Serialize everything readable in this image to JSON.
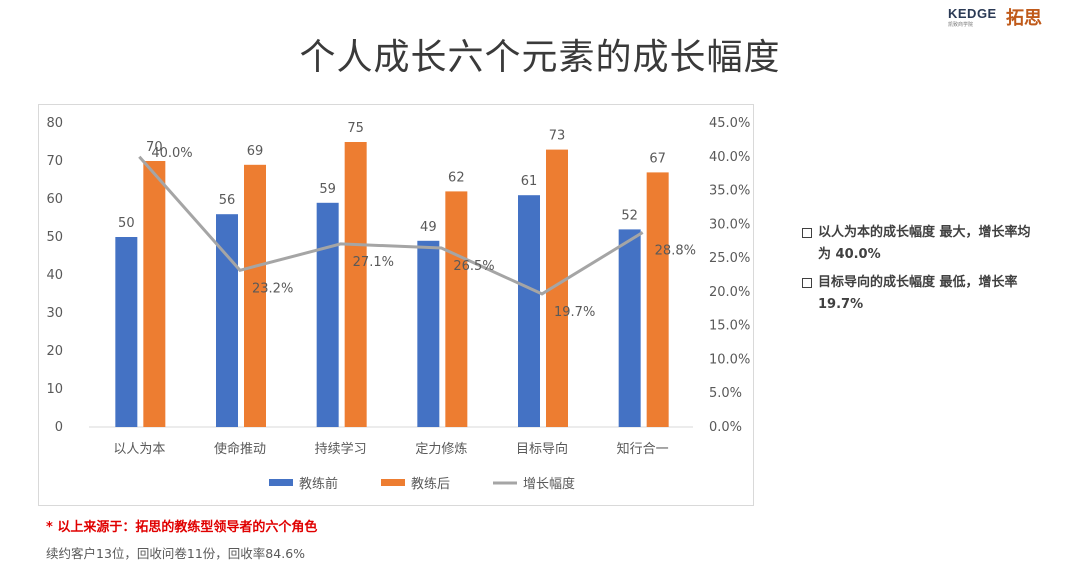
{
  "slide": {
    "title": "个人成长六个元素的成长幅度",
    "logo_left": "KEDGE",
    "logo_left_sub": "凯致商学院",
    "logo_right": "拓思"
  },
  "notes": [
    "以人为本的成长幅度 最大，增长率均为 40.0%",
    "目标导向的成长幅度 最低，增长率19.7%"
  ],
  "footer": {
    "source": "* 以上来源于：拓思的教练型领导者的六个角色",
    "stats": "续约客户13位，回收问卷11份，回收率84.6%"
  },
  "chart_data": {
    "type": "bar",
    "categories": [
      "以人为本",
      "使命推动",
      "持续学习",
      "定力修炼",
      "目标导向",
      "知行合一"
    ],
    "series": [
      {
        "name": "教练前",
        "type": "bar",
        "values": [
          50,
          56,
          59,
          49,
          61,
          52
        ],
        "color": "#4472c4"
      },
      {
        "name": "教练后",
        "type": "bar",
        "values": [
          70,
          69,
          75,
          62,
          73,
          67
        ],
        "color": "#ed7d31"
      },
      {
        "name": "增长幅度",
        "type": "line",
        "axis": "right",
        "values": [
          40.0,
          23.2,
          27.1,
          26.5,
          19.7,
          28.8
        ],
        "color": "#a5a5a5"
      }
    ],
    "y_left": {
      "min": 0,
      "max": 80,
      "step": 10,
      "ticks": [
        "0",
        "10",
        "20",
        "30",
        "40",
        "50",
        "60",
        "70",
        "80"
      ]
    },
    "y_right": {
      "min": 0,
      "max": 45,
      "step": 5,
      "ticks": [
        "0.0%",
        "5.0%",
        "10.0%",
        "15.0%",
        "20.0%",
        "25.0%",
        "30.0%",
        "35.0%",
        "40.0%",
        "45.0%"
      ]
    },
    "line_labels": [
      "40.0%",
      "23.2%",
      "27.1%",
      "26.5%",
      "19.7%",
      "28.8%"
    ],
    "grid": false,
    "legend_position": "bottom"
  }
}
